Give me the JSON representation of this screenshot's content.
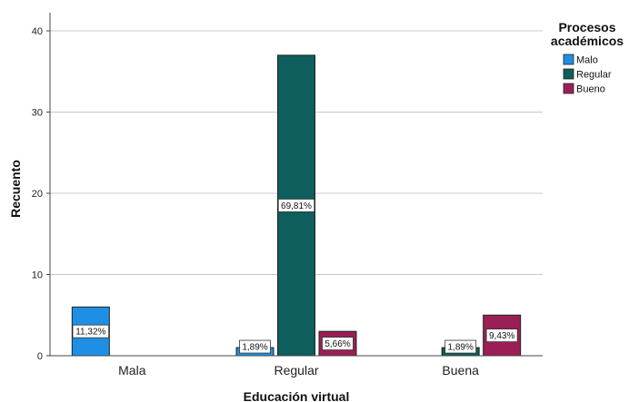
{
  "chart_data": {
    "type": "bar",
    "xlabel": "Educación virtual",
    "ylabel": "Recuento",
    "ylim": [
      0,
      40
    ],
    "yticks": [
      0,
      10,
      20,
      30,
      40
    ],
    "grid": "horizontal",
    "categories": [
      "Mala",
      "Regular",
      "Buena"
    ],
    "legend": {
      "title_lines": [
        "Procesos",
        "académicos"
      ],
      "position": "top-right"
    },
    "series": [
      {
        "name": "Malo",
        "color": "#1f8fe5",
        "values": [
          6,
          1,
          0
        ],
        "labels": [
          "11,32%",
          "1,89%",
          ""
        ]
      },
      {
        "name": "Regular",
        "color": "#0d5e5c",
        "values": [
          0,
          37,
          1
        ],
        "labels": [
          "",
          "69,81%",
          "1,89%"
        ]
      },
      {
        "name": "Bueno",
        "color": "#9a1f55",
        "values": [
          0,
          3,
          5
        ],
        "labels": [
          "",
          "5,66%",
          "9,43%"
        ]
      }
    ]
  }
}
